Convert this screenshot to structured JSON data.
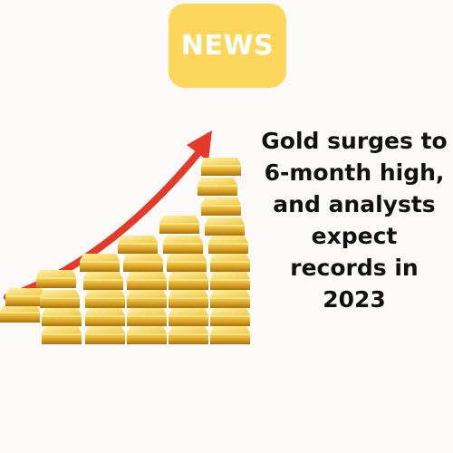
{
  "badge": {
    "label": "NEWS",
    "color": "#fcd75c"
  },
  "headline": {
    "lines": [
      "Gold surges to",
      "6-month high,",
      "and analysts",
      "expect",
      "records in",
      "2023"
    ]
  },
  "illustration": {
    "icon": "gold-bars-rising-arrow",
    "arrow_color": "#e53a2a",
    "gold_color": "#e3b233"
  }
}
